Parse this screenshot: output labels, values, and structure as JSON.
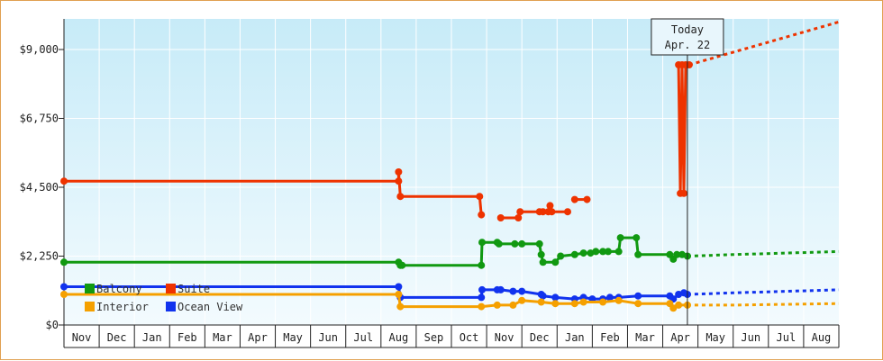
{
  "chart_data": {
    "type": "line",
    "title": "",
    "xlabel": "",
    "ylabel": "",
    "ylim": [
      0,
      10000
    ],
    "y_ticks": [
      {
        "value": 0,
        "label": "$0"
      },
      {
        "value": 2250,
        "label": "$2,250"
      },
      {
        "value": 4500,
        "label": "$4,500"
      },
      {
        "value": 6750,
        "label": "$6,750"
      },
      {
        "value": 9000,
        "label": "$9,000"
      }
    ],
    "months": [
      "Nov",
      "Dec",
      "Jan",
      "Feb",
      "Mar",
      "Apr",
      "May",
      "Jun",
      "Jul",
      "Aug",
      "Sep",
      "Oct",
      "Nov",
      "Dec",
      "Jan",
      "Feb",
      "Mar",
      "Apr",
      "May",
      "Jun",
      "Jul",
      "Aug"
    ],
    "x_range": [
      0,
      22
    ],
    "today": {
      "line1": "Today",
      "line2": "Apr. 22",
      "x": 17.7
    },
    "grid": true,
    "legend_position": "bottom-left",
    "series": [
      {
        "name": "Suite",
        "color": "#ee3300",
        "values": [
          {
            "x": 0.0,
            "y": 4700
          },
          {
            "x": 9.5,
            "y": 4700
          },
          {
            "x": 9.5,
            "y": 5000
          },
          {
            "x": 9.55,
            "y": 4200
          },
          {
            "x": 11.8,
            "y": 4200
          },
          {
            "x": 11.85,
            "y": 3600
          },
          {
            "x": null,
            "y": null
          },
          {
            "x": 12.4,
            "y": 3500
          },
          {
            "x": 12.9,
            "y": 3500
          },
          {
            "x": 12.95,
            "y": 3700
          },
          {
            "x": 13.5,
            "y": 3700
          },
          {
            "x": 13.6,
            "y": 3700
          },
          {
            "x": 13.75,
            "y": 3700
          },
          {
            "x": 13.8,
            "y": 3900
          },
          {
            "x": 13.85,
            "y": 3700
          },
          {
            "x": 14.3,
            "y": 3700
          },
          {
            "x": null,
            "y": null
          },
          {
            "x": 14.5,
            "y": 4100
          },
          {
            "x": 14.85,
            "y": 4100
          },
          {
            "x": null,
            "y": null
          },
          {
            "x": 17.45,
            "y": 8500
          },
          {
            "x": 17.5,
            "y": 4300
          },
          {
            "x": 17.55,
            "y": 8500
          },
          {
            "x": 17.6,
            "y": 4300
          },
          {
            "x": 17.65,
            "y": 8500
          },
          {
            "x": 17.75,
            "y": 8500
          }
        ],
        "forecast": [
          {
            "x": 17.75,
            "y": 8500
          },
          {
            "x": 22.0,
            "y": 9900
          }
        ]
      },
      {
        "name": "Balcony",
        "color": "#119911",
        "values": [
          {
            "x": 0.0,
            "y": 2050
          },
          {
            "x": 9.5,
            "y": 2050
          },
          {
            "x": 9.55,
            "y": 1950
          },
          {
            "x": 9.6,
            "y": 1950
          },
          {
            "x": 11.85,
            "y": 1950
          },
          {
            "x": 11.87,
            "y": 2700
          },
          {
            "x": 12.3,
            "y": 2700
          },
          {
            "x": 12.35,
            "y": 2650
          },
          {
            "x": 12.8,
            "y": 2650
          },
          {
            "x": 13.0,
            "y": 2650
          },
          {
            "x": 13.5,
            "y": 2650
          },
          {
            "x": 13.55,
            "y": 2300
          },
          {
            "x": 13.6,
            "y": 2050
          },
          {
            "x": 13.95,
            "y": 2050
          },
          {
            "x": 14.1,
            "y": 2250
          },
          {
            "x": 14.5,
            "y": 2300
          },
          {
            "x": 14.75,
            "y": 2350
          },
          {
            "x": 14.95,
            "y": 2350
          },
          {
            "x": 15.1,
            "y": 2400
          },
          {
            "x": 15.3,
            "y": 2400
          },
          {
            "x": 15.45,
            "y": 2400
          },
          {
            "x": 15.75,
            "y": 2400
          },
          {
            "x": 15.8,
            "y": 2850
          },
          {
            "x": 16.25,
            "y": 2850
          },
          {
            "x": 16.3,
            "y": 2300
          },
          {
            "x": 17.2,
            "y": 2300
          },
          {
            "x": 17.3,
            "y": 2150
          },
          {
            "x": 17.4,
            "y": 2300
          },
          {
            "x": 17.55,
            "y": 2300
          },
          {
            "x": 17.7,
            "y": 2250
          }
        ],
        "forecast": [
          {
            "x": 17.7,
            "y": 2250
          },
          {
            "x": 19.0,
            "y": 2300
          },
          {
            "x": 22.0,
            "y": 2400
          }
        ]
      },
      {
        "name": "Ocean View",
        "color": "#1133ee",
        "values": [
          {
            "x": 0.0,
            "y": 1250
          },
          {
            "x": 9.5,
            "y": 1250
          },
          {
            "x": 9.55,
            "y": 900
          },
          {
            "x": 11.85,
            "y": 900
          },
          {
            "x": 11.87,
            "y": 1150
          },
          {
            "x": 12.3,
            "y": 1150
          },
          {
            "x": 12.4,
            "y": 1150
          },
          {
            "x": 12.75,
            "y": 1100
          },
          {
            "x": 13.0,
            "y": 1100
          },
          {
            "x": 13.55,
            "y": 1000
          },
          {
            "x": 13.6,
            "y": 950
          },
          {
            "x": 13.95,
            "y": 900
          },
          {
            "x": 14.5,
            "y": 850
          },
          {
            "x": 14.75,
            "y": 900
          },
          {
            "x": 15.0,
            "y": 850
          },
          {
            "x": 15.3,
            "y": 850
          },
          {
            "x": 15.5,
            "y": 900
          },
          {
            "x": 15.75,
            "y": 900
          },
          {
            "x": 16.3,
            "y": 950
          },
          {
            "x": 17.2,
            "y": 950
          },
          {
            "x": 17.3,
            "y": 850
          },
          {
            "x": 17.45,
            "y": 1000
          },
          {
            "x": 17.6,
            "y": 1050
          },
          {
            "x": 17.7,
            "y": 1000
          }
        ],
        "forecast": [
          {
            "x": 17.7,
            "y": 1000
          },
          {
            "x": 19.0,
            "y": 1050
          },
          {
            "x": 22.0,
            "y": 1150
          }
        ]
      },
      {
        "name": "Interior",
        "color": "#f5a000",
        "values": [
          {
            "x": 0.0,
            "y": 1000
          },
          {
            "x": 9.5,
            "y": 1000
          },
          {
            "x": 9.55,
            "y": 600
          },
          {
            "x": 11.85,
            "y": 600
          },
          {
            "x": 12.3,
            "y": 650
          },
          {
            "x": 12.75,
            "y": 650
          },
          {
            "x": 13.0,
            "y": 800
          },
          {
            "x": 13.55,
            "y": 750
          },
          {
            "x": 13.95,
            "y": 700
          },
          {
            "x": 14.5,
            "y": 700
          },
          {
            "x": 14.75,
            "y": 750
          },
          {
            "x": 15.3,
            "y": 750
          },
          {
            "x": 15.75,
            "y": 800
          },
          {
            "x": 16.3,
            "y": 700
          },
          {
            "x": 17.2,
            "y": 700
          },
          {
            "x": 17.3,
            "y": 550
          },
          {
            "x": 17.45,
            "y": 650
          },
          {
            "x": 17.7,
            "y": 650
          }
        ],
        "forecast": [
          {
            "x": 17.7,
            "y": 650
          },
          {
            "x": 19.0,
            "y": 650
          },
          {
            "x": 22.0,
            "y": 700
          }
        ]
      }
    ],
    "legend": [
      {
        "label": "Balcony",
        "color": "#119911"
      },
      {
        "label": "Suite",
        "color": "#ee3300"
      },
      {
        "label": "Interior",
        "color": "#f5a000"
      },
      {
        "label": "Ocean View",
        "color": "#1133ee"
      }
    ]
  }
}
